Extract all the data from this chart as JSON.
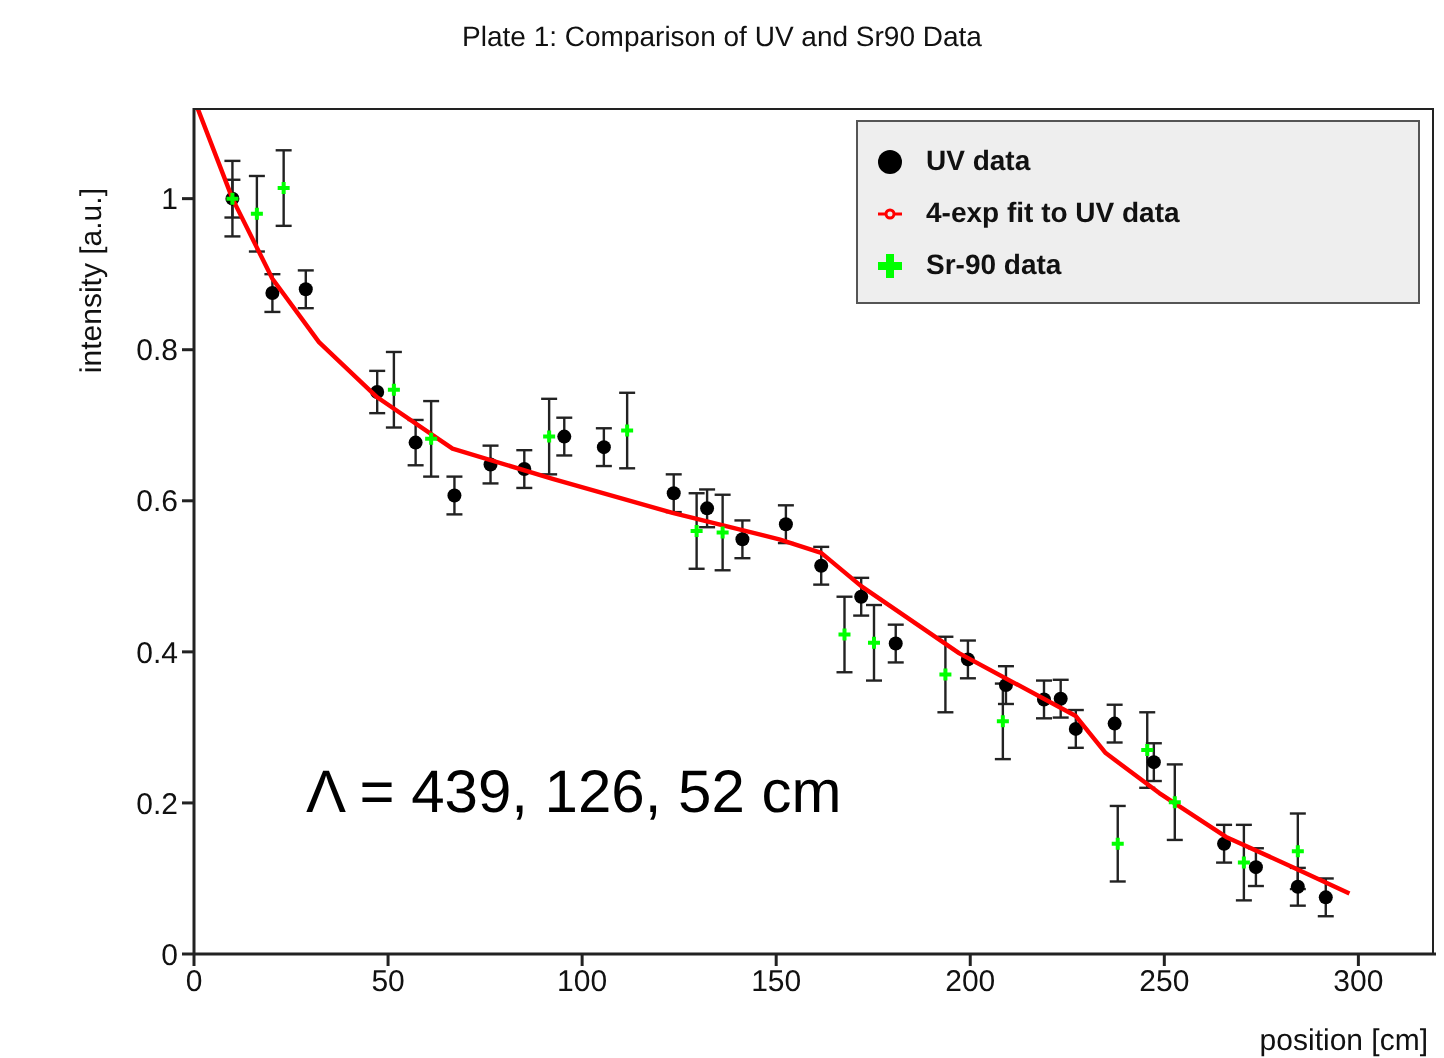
{
  "chart_data": {
    "type": "scatter",
    "title": "Plate 1: Comparison of UV and Sr90 Data",
    "xlabel": "position [cm]",
    "ylabel": "intensity [a.u.]",
    "xlim": [
      0,
      320
    ],
    "xticks": [
      0,
      50,
      100,
      150,
      200,
      250,
      300
    ],
    "ylim": [
      0,
      1.12
    ],
    "yticks": [
      0,
      0.2,
      0.4,
      0.6,
      0.8,
      1
    ],
    "legend": "top right",
    "annotations": [
      "Λ = 439, 126, 52 cm"
    ],
    "series": [
      {
        "name": "UV data",
        "marker": "circle",
        "color": "#000000",
        "x": [
          9.9,
          20.2,
          28.8,
          47.2,
          57.1,
          67.1,
          76.4,
          85.1,
          95.4,
          105.6,
          123.6,
          132.2,
          141.3,
          152.5,
          161.6,
          171.9,
          180.8,
          199.4,
          209.2,
          219.0,
          223.3,
          227.2,
          237.2,
          247.3,
          265.4,
          273.6,
          284.4,
          291.6
        ],
        "values": [
          1.0,
          0.875,
          0.88,
          0.744,
          0.677,
          0.607,
          0.648,
          0.642,
          0.685,
          0.671,
          0.61,
          0.59,
          0.549,
          0.569,
          0.514,
          0.473,
          0.411,
          0.39,
          0.356,
          0.337,
          0.338,
          0.298,
          0.305,
          0.254,
          0.146,
          0.115,
          0.089,
          0.075
        ],
        "errors": [
          0.025,
          0.025,
          0.025,
          0.028,
          0.03,
          0.025,
          0.025,
          0.025,
          0.025,
          0.025,
          0.025,
          0.025,
          0.025,
          0.025,
          0.025,
          0.025,
          0.025,
          0.025,
          0.025,
          0.025,
          0.025,
          0.025,
          0.025,
          0.025,
          0.025,
          0.025,
          0.025,
          0.025
        ]
      },
      {
        "name": "4-exp fit to UV data",
        "type": "line",
        "color": "#ff0000",
        "x": [
          0.9,
          9.9,
          20.2,
          32.2,
          47.2,
          66.6,
          92.4,
          123.3,
          150.8,
          161.6,
          171.9,
          197.2,
          227.2,
          234.9,
          248.7,
          265.9,
          283.1,
          297.7
        ],
        "values": [
          1.12,
          1.0,
          0.894,
          0.81,
          0.737,
          0.669,
          0.629,
          0.584,
          0.549,
          0.531,
          0.487,
          0.398,
          0.315,
          0.266,
          0.213,
          0.155,
          0.115,
          0.08
        ]
      },
      {
        "name": "Sr-90 data",
        "marker": "cross",
        "color": "#00ff00",
        "x": [
          9.9,
          16.2,
          23.1,
          51.5,
          61.1,
          91.5,
          111.6,
          129.5,
          136.2,
          167.6,
          175.2,
          193.6,
          208.4,
          238.0,
          245.6,
          252.7,
          270.5,
          284.4
        ],
        "values": [
          1.0,
          0.98,
          1.014,
          0.747,
          0.682,
          0.685,
          0.693,
          0.56,
          0.558,
          0.423,
          0.412,
          0.37,
          0.308,
          0.146,
          0.27,
          0.201,
          0.121,
          0.136
        ],
        "errors": [
          0.05,
          0.05,
          0.05,
          0.05,
          0.05,
          0.05,
          0.05,
          0.05,
          0.05,
          0.05,
          0.05,
          0.05,
          0.05,
          0.05,
          0.05,
          0.05,
          0.05,
          0.05
        ]
      }
    ]
  }
}
